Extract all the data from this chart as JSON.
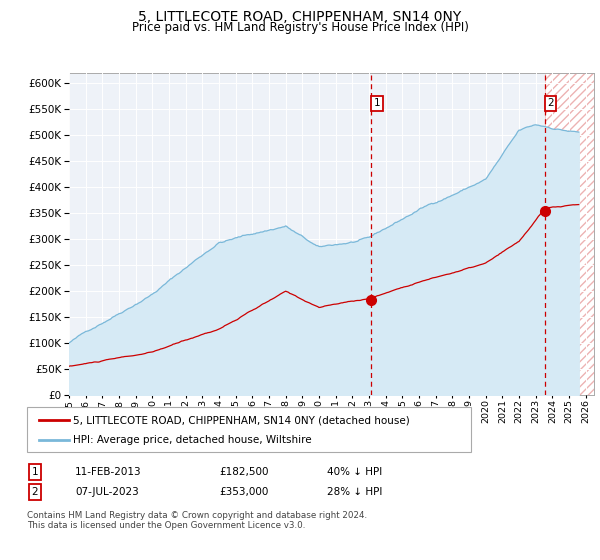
{
  "title": "5, LITTLECOTE ROAD, CHIPPENHAM, SN14 0NY",
  "subtitle": "Price paid vs. HM Land Registry's House Price Index (HPI)",
  "ylim": [
    0,
    620000
  ],
  "yticks": [
    0,
    50000,
    100000,
    150000,
    200000,
    250000,
    300000,
    350000,
    400000,
    450000,
    500000,
    550000,
    600000
  ],
  "xlim_start": 1995.0,
  "xlim_end": 2026.5,
  "xticks": [
    1995,
    1996,
    1997,
    1998,
    1999,
    2000,
    2001,
    2002,
    2003,
    2004,
    2005,
    2006,
    2007,
    2008,
    2009,
    2010,
    2011,
    2012,
    2013,
    2014,
    2015,
    2016,
    2017,
    2018,
    2019,
    2020,
    2021,
    2022,
    2023,
    2024,
    2025,
    2026
  ],
  "hpi_color": "#7ab8d9",
  "hpi_fill_color": "#d6eaf5",
  "price_color": "#cc0000",
  "vline_color": "#cc0000",
  "marker1_date": 2013.12,
  "marker1_price": 182500,
  "marker2_date": 2023.54,
  "marker2_price": 353000,
  "legend_line1": "5, LITTLECOTE ROAD, CHIPPENHAM, SN14 0NY (detached house)",
  "legend_line2": "HPI: Average price, detached house, Wiltshire",
  "table_row1": [
    "1",
    "11-FEB-2013",
    "£182,500",
    "40% ↓ HPI"
  ],
  "table_row2": [
    "2",
    "07-JUL-2023",
    "£353,000",
    "28% ↓ HPI"
  ],
  "footnote": "Contains HM Land Registry data © Crown copyright and database right 2024.\nThis data is licensed under the Open Government Licence v3.0.",
  "future_start": 2023.54,
  "background_color": "#ffffff",
  "plot_bg_color": "#eef2f8"
}
